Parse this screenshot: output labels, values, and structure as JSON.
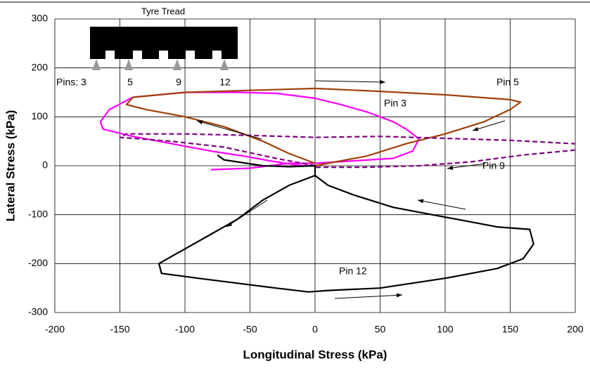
{
  "chart_data": {
    "type": "line",
    "xlabel": "Longitudinal Stress (kPa)",
    "ylabel": "Lateral Stress (kPa)",
    "xlim": [
      -200,
      200
    ],
    "xticks": [
      -200,
      -150,
      -100,
      -50,
      0,
      50,
      100,
      150,
      200
    ],
    "ylim": [
      -300,
      300
    ],
    "yticks": [
      -300,
      -200,
      -100,
      0,
      100,
      200,
      300
    ],
    "grid": true,
    "inset": {
      "title": "Tyre Tread",
      "labels": [
        "Pins: 3",
        "5",
        "9",
        "12"
      ]
    },
    "series": [
      {
        "name": "Pin 3",
        "color": "#ff00ff",
        "dashed": false,
        "x": [
          -80,
          -50,
          -20,
          0,
          30,
          60,
          75,
          80,
          70,
          60,
          40,
          20,
          0,
          -30,
          -60,
          -100,
          -140,
          -158,
          -165,
          -163,
          -140,
          -110,
          -80,
          -55,
          -35,
          -10,
          0
        ],
        "values": [
          -8,
          -5,
          5,
          5,
          10,
          15,
          30,
          55,
          75,
          90,
          110,
          125,
          138,
          148,
          150,
          150,
          140,
          115,
          90,
          75,
          60,
          45,
          30,
          20,
          10,
          0,
          0
        ]
      },
      {
        "name": "Pin 5",
        "color": "#a0400a",
        "dashed": false,
        "x": [
          0,
          40,
          70,
          100,
          130,
          150,
          158,
          150,
          100,
          50,
          0,
          -50,
          -100,
          -140,
          -145,
          -130,
          -100,
          -70,
          -40,
          -20,
          0
        ],
        "values": [
          0,
          20,
          45,
          65,
          90,
          115,
          130,
          135,
          145,
          152,
          158,
          154,
          150,
          140,
          125,
          115,
          100,
          80,
          50,
          25,
          5
        ]
      },
      {
        "name": "Pin 9",
        "color": "#800080",
        "dashed": true,
        "x": [
          0,
          -30,
          -70,
          -110,
          -150,
          -145,
          -100,
          -50,
          0,
          50,
          100,
          150,
          200,
          null,
          200,
          160,
          120,
          80,
          40,
          0
        ],
        "values": [
          0,
          15,
          38,
          50,
          58,
          65,
          65,
          62,
          58,
          60,
          56,
          52,
          45,
          null,
          32,
          22,
          8,
          0,
          -3,
          -3
        ]
      },
      {
        "name": "Pin 12",
        "color": "#000000",
        "dashed": false,
        "x": [
          -75,
          -70,
          -40,
          -20,
          0,
          0,
          -20,
          -40,
          -60,
          -80,
          -100,
          -120,
          -118,
          -90,
          -60,
          -30,
          -5,
          10,
          50,
          100,
          140,
          160,
          168,
          165,
          140,
          120,
          90,
          60,
          30,
          10,
          0
        ],
        "values": [
          22,
          12,
          0,
          -2,
          0,
          -20,
          -40,
          -70,
          -110,
          -140,
          -170,
          -200,
          -220,
          -230,
          -240,
          -250,
          -258,
          -255,
          -250,
          -230,
          -210,
          -190,
          -160,
          -130,
          -125,
          -115,
          -100,
          -85,
          -60,
          -40,
          -20
        ]
      }
    ]
  }
}
